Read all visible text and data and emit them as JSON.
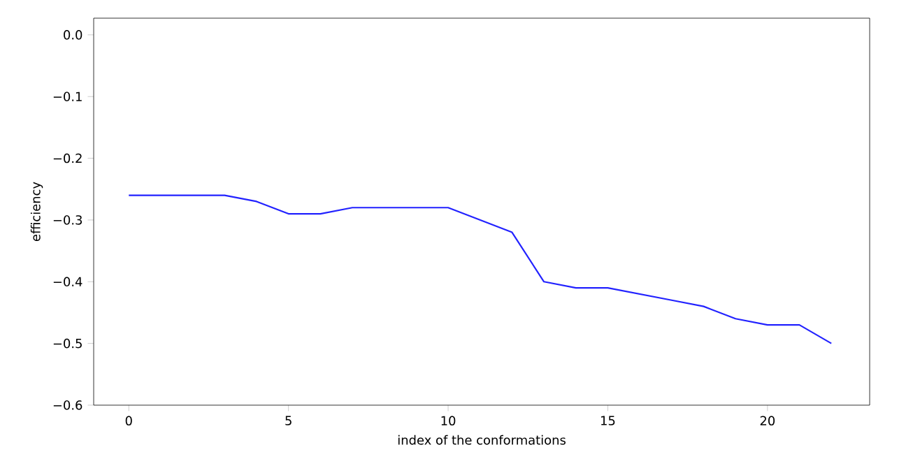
{
  "chart_data": {
    "type": "line",
    "xlabel": "index of the conformations",
    "ylabel": "efficiency",
    "x": [
      0,
      1,
      2,
      3,
      4,
      5,
      6,
      7,
      8,
      9,
      10,
      11,
      12,
      13,
      14,
      15,
      16,
      17,
      18,
      19,
      20,
      21,
      22
    ],
    "series": [
      {
        "color": "#2222ff",
        "values": [
          -0.26,
          -0.26,
          -0.26,
          -0.26,
          -0.27,
          -0.29,
          -0.29,
          -0.28,
          -0.28,
          -0.28,
          -0.28,
          -0.3,
          -0.32,
          -0.4,
          -0.41,
          -0.41,
          -0.42,
          -0.43,
          -0.44,
          -0.46,
          -0.47,
          -0.47,
          -0.5
        ]
      }
    ],
    "xlim": [
      -1.1,
      23.2
    ],
    "ylim": [
      -0.6,
      0.027
    ],
    "xticks": [
      0,
      5,
      10,
      15,
      20
    ],
    "yticks": [
      {
        "value": 0,
        "label": "0.0"
      },
      {
        "value": -0.1,
        "label": "−0.1"
      },
      {
        "value": -0.2,
        "label": "−0.2"
      },
      {
        "value": -0.3,
        "label": "−0.3"
      },
      {
        "value": -0.4,
        "label": "−0.4"
      },
      {
        "value": -0.5,
        "label": "−0.5"
      },
      {
        "value": -0.6,
        "label": "−0.6"
      }
    ],
    "grid": false,
    "line_style": "solid",
    "marker": "none"
  }
}
